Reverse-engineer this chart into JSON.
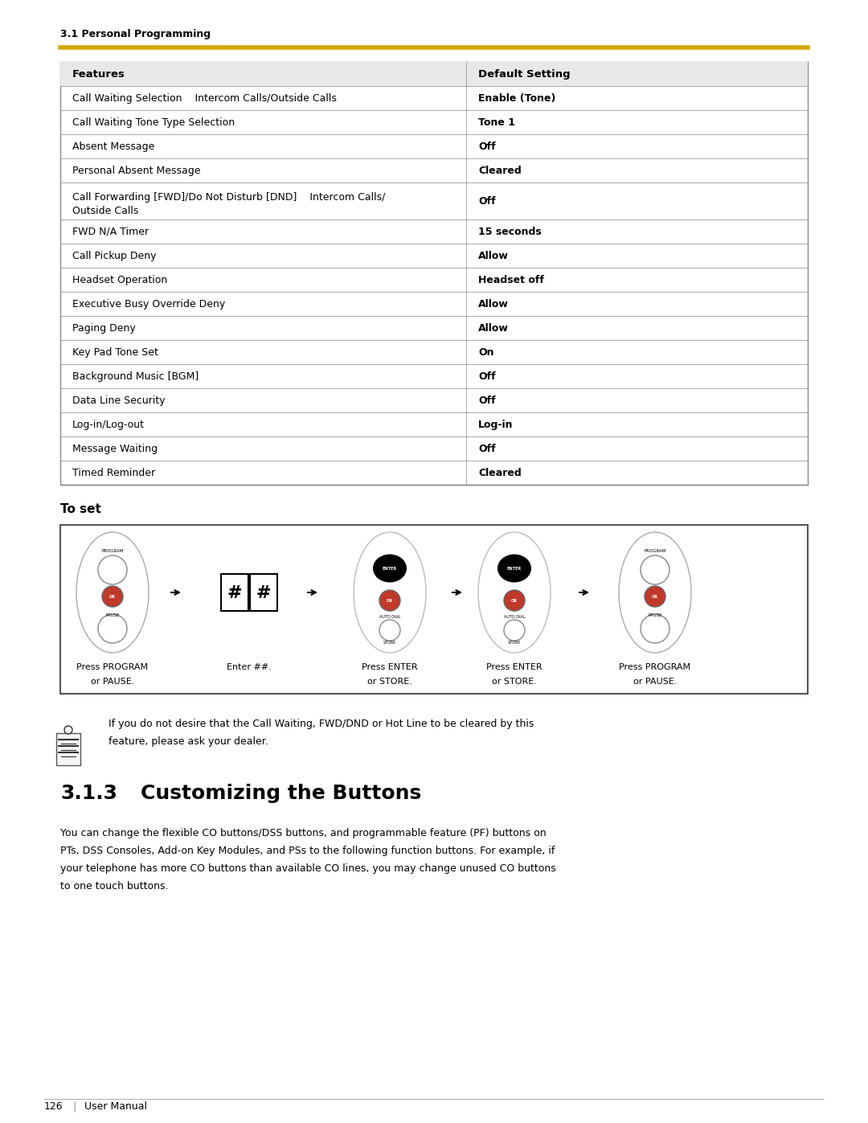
{
  "page_bg": "#ffffff",
  "header_text": "3.1 Personal Programming",
  "header_line_color": "#ccaa00",
  "table_rows": [
    [
      "Features",
      "Default Setting"
    ],
    [
      "Call Waiting Selection    Intercom Calls/Outside Calls",
      "Enable (Tone)"
    ],
    [
      "Call Waiting Tone Type Selection",
      "Tone 1"
    ],
    [
      "Absent Message",
      "Off"
    ],
    [
      "Personal Absent Message",
      "Cleared"
    ],
    [
      "Call Forwarding [FWD]/Do Not Disturb [DND]    Intercom Calls/\nOutside Calls",
      "Off"
    ],
    [
      "FWD N/A Timer",
      "15 seconds"
    ],
    [
      "Call Pickup Deny",
      "Allow"
    ],
    [
      "Headset Operation",
      "Headset off"
    ],
    [
      "Executive Busy Override Deny",
      "Allow"
    ],
    [
      "Paging Deny",
      "Allow"
    ],
    [
      "Key Pad Tone Set",
      "On"
    ],
    [
      "Background Music [BGM]",
      "Off"
    ],
    [
      "Data Line Security",
      "Off"
    ],
    [
      "Log-in/Log-out",
      "Log-in"
    ],
    [
      "Message Waiting",
      "Off"
    ],
    [
      "Timed Reminder",
      "Cleared"
    ]
  ],
  "to_set_label": "To set",
  "diagram_labels": [
    "Press PROGRAM\nor PAUSE.",
    "Enter ##.",
    "Press ENTER\nor STORE.",
    "Press ENTER\nor STORE.",
    "Press PROGRAM\nor PAUSE."
  ],
  "note_text": "If you do not desire that the Call Waiting, FWD/DND or Hot Line to be cleared by this\nfeature, please ask your dealer.",
  "section_number": "3.1.3",
  "section_title": "Customizing the Buttons",
  "section_body": "You can change the flexible CO buttons/DSS buttons, and programmable feature (PF) buttons on\nPTs, DSS Consoles, Add-on Key Modules, and PSs to the following function buttons. For example, if\nyour telephone has more CO buttons than available CO lines, you may change unused CO buttons\nto one touch buttons.",
  "page_number": "126",
  "page_label": "User Manual",
  "yellow_line_color": "#d4a800",
  "table_border_color": "#888888",
  "table_header_bg": "#e8e8e8"
}
